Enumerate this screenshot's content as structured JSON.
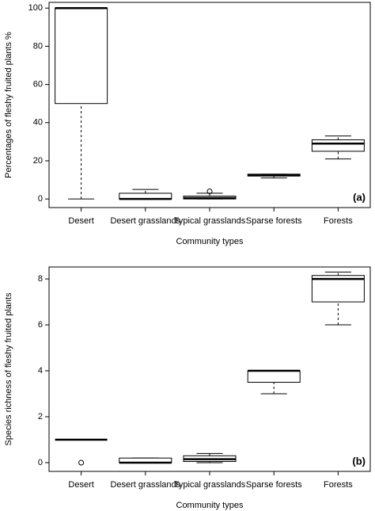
{
  "chart_data": [
    {
      "type": "box",
      "panel_label": "(a)",
      "ylabel": "Percentages of fleshy fruited plants %",
      "xlabel": "Community types",
      "categories": [
        "Desert",
        "Desert grasslands",
        "Typical grasslands",
        "Sparse forests",
        "Forests"
      ],
      "boxes": [
        {
          "min": 0,
          "q1": 50,
          "median": 100,
          "q3": 100,
          "max": 100,
          "outliers": []
        },
        {
          "min": 0,
          "q1": 0,
          "median": 0,
          "q3": 3,
          "max": 5,
          "outliers": []
        },
        {
          "min": 0,
          "q1": 0,
          "median": 0.5,
          "q3": 1.5,
          "max": 3,
          "outliers": [
            4
          ]
        },
        {
          "min": 11,
          "q1": 12,
          "median": 12.5,
          "q3": 13,
          "max": 13,
          "outliers": []
        },
        {
          "min": 21,
          "q1": 25,
          "median": 29,
          "q3": 31,
          "max": 33,
          "outliers": []
        }
      ],
      "ylim": [
        -4.5,
        103
      ],
      "yticks": [
        0,
        20,
        40,
        60,
        80,
        100
      ]
    },
    {
      "type": "box",
      "panel_label": "(b)",
      "ylabel": "Species richness of fleshy fruited plants",
      "xlabel": "Community types",
      "categories": [
        "Desert",
        "Desert grasslands",
        "Typical grasslands",
        "Sparse forests",
        "Forests"
      ],
      "boxes": [
        {
          "min": 1,
          "q1": 1,
          "median": 1,
          "q3": 1,
          "max": 1,
          "outliers": [
            0
          ]
        },
        {
          "min": 0,
          "q1": 0,
          "median": 0,
          "q3": 0.2,
          "max": 0.2,
          "outliers": []
        },
        {
          "min": 0,
          "q1": 0.05,
          "median": 0.15,
          "q3": 0.3,
          "max": 0.4,
          "outliers": []
        },
        {
          "min": 3,
          "q1": 3.5,
          "median": 4,
          "q3": 4,
          "max": 4,
          "outliers": []
        },
        {
          "min": 6,
          "q1": 7,
          "median": 8,
          "q3": 8.15,
          "max": 8.3,
          "outliers": []
        }
      ],
      "ylim": [
        -0.38,
        8.52
      ],
      "yticks": [
        0,
        2,
        4,
        6,
        8
      ]
    }
  ]
}
